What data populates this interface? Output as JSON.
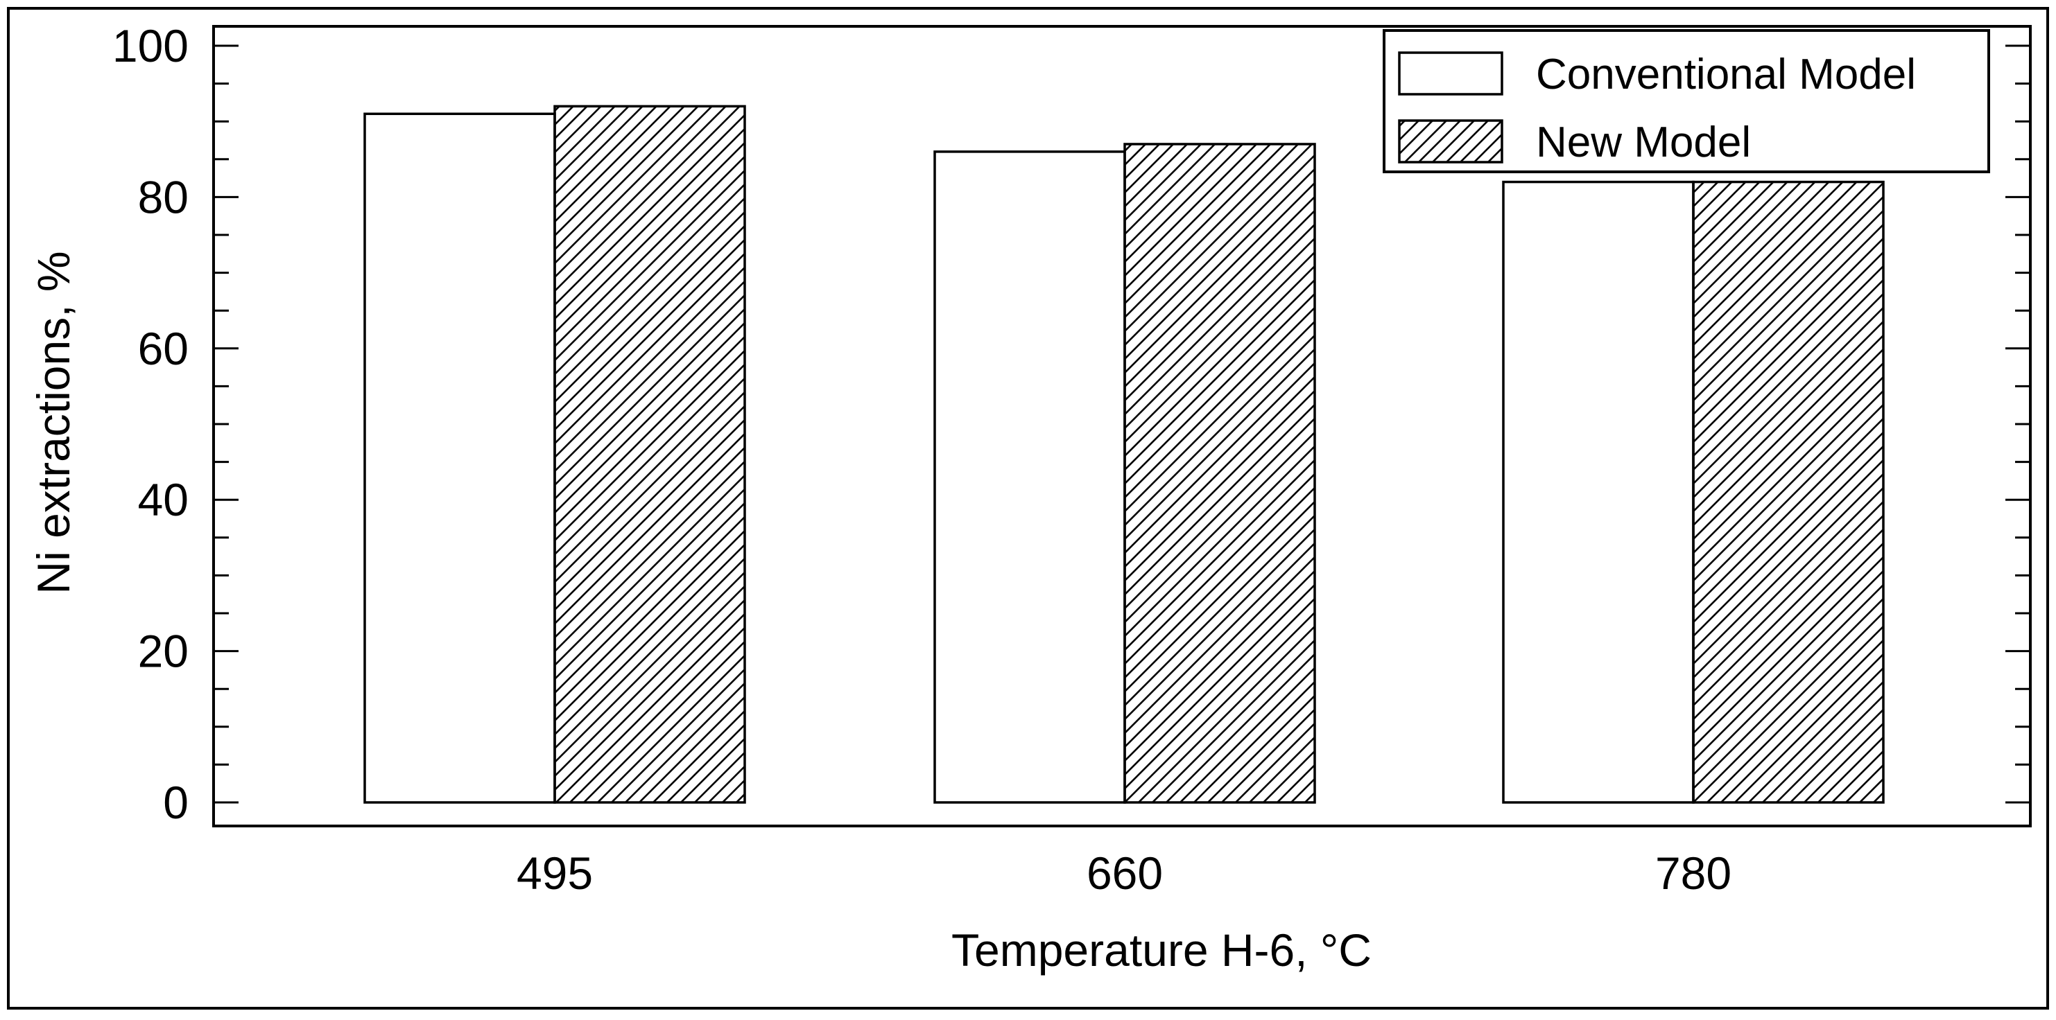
{
  "chart_data": {
    "type": "bar",
    "categories": [
      "495",
      "660",
      "780"
    ],
    "series": [
      {
        "name": "Conventional Model",
        "values": [
          91,
          86,
          82
        ],
        "fill": "#ffffff",
        "pattern": "none"
      },
      {
        "name": "New Model",
        "values": [
          92,
          87,
          82
        ],
        "fill": "#ffffff",
        "pattern": "diagonal-hatch"
      }
    ],
    "xlabel": "Temperature H-6, °C",
    "ylabel": "Ni extractions, %",
    "ylim": [
      0,
      100
    ],
    "yticks": [
      "0",
      "20",
      "40",
      "60",
      "80",
      "100"
    ],
    "legend_position": "top-right",
    "grid": false,
    "colors": {
      "stroke": "#000000",
      "background": "#ffffff"
    }
  }
}
